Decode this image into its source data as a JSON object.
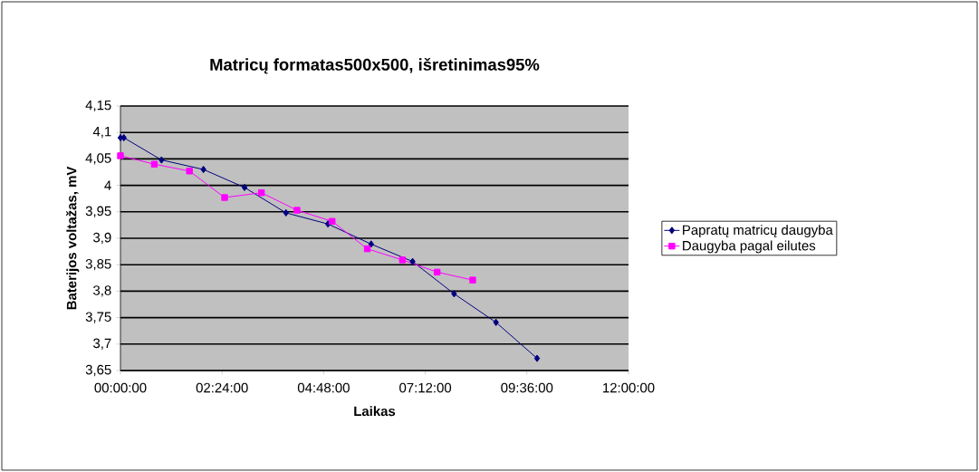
{
  "chart_data": {
    "type": "line",
    "title": "Matricų formatas500x500, išretinimas95%",
    "xlabel": "Laikas",
    "ylabel": "Baterijos voltažas, mV",
    "xlim": [
      0,
      12
    ],
    "xticks": [
      {
        "value": 0,
        "label": "00:00:00"
      },
      {
        "value": 2.4,
        "label": "02:24:00"
      },
      {
        "value": 4.8,
        "label": "04:48:00"
      },
      {
        "value": 7.2,
        "label": "07:12:00"
      },
      {
        "value": 9.6,
        "label": "09:36:00"
      },
      {
        "value": 12,
        "label": "12:00:00"
      }
    ],
    "ylim": [
      3.65,
      4.15
    ],
    "yticks": [
      {
        "value": 3.65,
        "label": "3,65"
      },
      {
        "value": 3.7,
        "label": "3,7"
      },
      {
        "value": 3.75,
        "label": "3,75"
      },
      {
        "value": 3.8,
        "label": "3,8"
      },
      {
        "value": 3.85,
        "label": "3,85"
      },
      {
        "value": 3.9,
        "label": "3,9"
      },
      {
        "value": 3.95,
        "label": "3,95"
      },
      {
        "value": 4,
        "label": "4"
      },
      {
        "value": 4.05,
        "label": "4,05"
      },
      {
        "value": 4.1,
        "label": "4,1"
      },
      {
        "value": 4.15,
        "label": "4,15"
      }
    ],
    "grid": "y",
    "legend": "right",
    "series": [
      {
        "name": "Papratų matricų daugyba",
        "color": "#000080",
        "marker": "diamond",
        "x": [
          0,
          0.08,
          0.97,
          1.96,
          2.93,
          3.91,
          4.9,
          5.92,
          6.9,
          7.88,
          8.87,
          9.84
        ],
        "values": [
          4.09,
          4.09,
          4.048,
          4.03,
          3.996,
          3.948,
          3.927,
          3.889,
          3.856,
          3.795,
          3.741,
          3.673
        ]
      },
      {
        "name": "Daugyba pagal eilutes",
        "color": "#ff00ff",
        "marker": "square",
        "x": [
          0,
          0.8,
          1.63,
          2.46,
          3.33,
          4.17,
          5.0,
          5.83,
          6.66,
          7.48,
          8.32
        ],
        "values": [
          4.056,
          4.04,
          4.027,
          3.977,
          3.986,
          3.953,
          3.932,
          3.88,
          3.859,
          3.836,
          3.821
        ]
      }
    ]
  }
}
